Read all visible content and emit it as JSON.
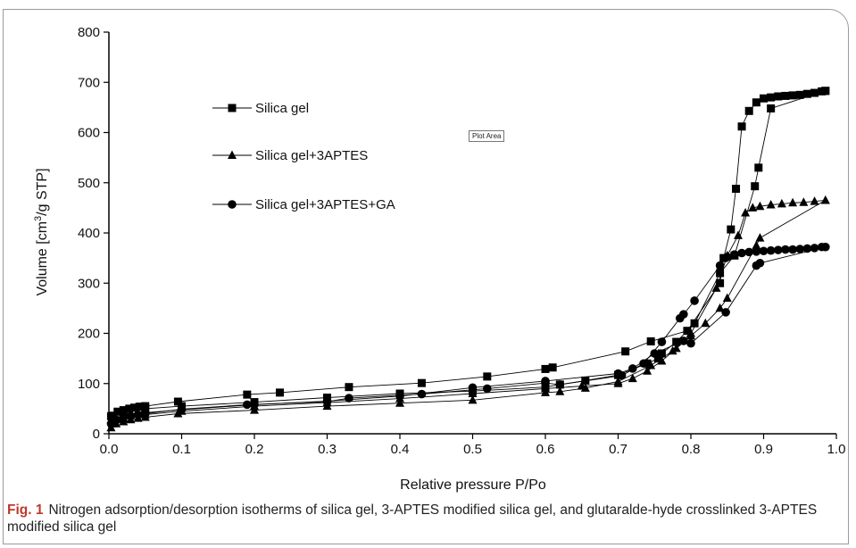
{
  "chart_data": {
    "type": "scatter",
    "xlabel": "Relative pressure P/Po",
    "ylabel_main": "Volume [cm",
    "ylabel_sup": "3",
    "ylabel_rest": "/g STP]",
    "xlim": [
      0.0,
      1.0
    ],
    "ylim": [
      0,
      800
    ],
    "xticks": [
      "0.0",
      "0.1",
      "0.2",
      "0.3",
      "0.4",
      "0.5",
      "0.6",
      "0.7",
      "0.8",
      "0.9",
      "1.0"
    ],
    "yticks": [
      "0",
      "100",
      "200",
      "300",
      "400",
      "500",
      "600",
      "700",
      "800"
    ],
    "grid": false,
    "legend_position": "top-left",
    "series": [
      {
        "name": "Silica gel",
        "marker": "square",
        "adsorption": [
          [
            0.003,
            35
          ],
          [
            0.012,
            44
          ],
          [
            0.02,
            47
          ],
          [
            0.028,
            50
          ],
          [
            0.035,
            52
          ],
          [
            0.042,
            54
          ],
          [
            0.05,
            55
          ],
          [
            0.095,
            64
          ],
          [
            0.19,
            78
          ],
          [
            0.235,
            82
          ],
          [
            0.33,
            93
          ],
          [
            0.43,
            101
          ],
          [
            0.52,
            114
          ],
          [
            0.6,
            129
          ],
          [
            0.61,
            132
          ],
          [
            0.71,
            164
          ],
          [
            0.745,
            184
          ],
          [
            0.795,
            205
          ],
          [
            0.84,
            300
          ],
          [
            0.845,
            350
          ],
          [
            0.855,
            407
          ],
          [
            0.862,
            488
          ],
          [
            0.87,
            612
          ],
          [
            0.88,
            643
          ],
          [
            0.89,
            660
          ],
          [
            0.9,
            668
          ],
          [
            0.91,
            670
          ],
          [
            0.92,
            672
          ],
          [
            0.93,
            673
          ],
          [
            0.94,
            674
          ],
          [
            0.95,
            675
          ],
          [
            0.96,
            677
          ],
          [
            0.97,
            679
          ],
          [
            0.98,
            682
          ],
          [
            0.985,
            683
          ]
        ],
        "desorption": [
          [
            0.985,
            683
          ],
          [
            0.91,
            648
          ],
          [
            0.893,
            530
          ],
          [
            0.888,
            493
          ],
          [
            0.86,
            355
          ],
          [
            0.84,
            320
          ],
          [
            0.805,
            220
          ],
          [
            0.78,
            183
          ],
          [
            0.76,
            160
          ],
          [
            0.755,
            150
          ],
          [
            0.74,
            140
          ],
          [
            0.7,
            117
          ],
          [
            0.655,
            106
          ],
          [
            0.62,
            98
          ],
          [
            0.6,
            93
          ],
          [
            0.5,
            85
          ],
          [
            0.4,
            80
          ],
          [
            0.3,
            72
          ],
          [
            0.2,
            63
          ],
          [
            0.1,
            55
          ],
          [
            0.05,
            50
          ],
          [
            0.02,
            42
          ],
          [
            0.005,
            36
          ]
        ]
      },
      {
        "name": "Silica gel+3APTES",
        "marker": "triangle",
        "adsorption": [
          [
            0.003,
            12
          ],
          [
            0.01,
            20
          ],
          [
            0.02,
            24
          ],
          [
            0.03,
            28
          ],
          [
            0.04,
            31
          ],
          [
            0.05,
            33
          ],
          [
            0.095,
            40
          ],
          [
            0.2,
            47
          ],
          [
            0.3,
            55
          ],
          [
            0.4,
            61
          ],
          [
            0.5,
            67
          ],
          [
            0.6,
            82
          ],
          [
            0.62,
            84
          ],
          [
            0.655,
            91
          ],
          [
            0.7,
            104
          ],
          [
            0.745,
            136
          ],
          [
            0.775,
            165
          ],
          [
            0.8,
            200
          ],
          [
            0.835,
            290
          ],
          [
            0.85,
            355
          ],
          [
            0.865,
            395
          ],
          [
            0.875,
            440
          ],
          [
            0.885,
            450
          ],
          [
            0.895,
            453
          ],
          [
            0.91,
            456
          ],
          [
            0.925,
            458
          ],
          [
            0.94,
            460
          ],
          [
            0.955,
            461
          ],
          [
            0.97,
            463
          ],
          [
            0.985,
            465
          ]
        ],
        "desorption": [
          [
            0.985,
            465
          ],
          [
            0.895,
            390
          ],
          [
            0.89,
            375
          ],
          [
            0.85,
            270
          ],
          [
            0.84,
            250
          ],
          [
            0.82,
            220
          ],
          [
            0.8,
            195
          ],
          [
            0.78,
            170
          ],
          [
            0.76,
            145
          ],
          [
            0.74,
            125
          ],
          [
            0.72,
            110
          ],
          [
            0.7,
            100
          ],
          [
            0.65,
            95
          ],
          [
            0.6,
            90
          ],
          [
            0.5,
            80
          ],
          [
            0.4,
            70
          ],
          [
            0.3,
            62
          ],
          [
            0.2,
            55
          ],
          [
            0.1,
            45
          ],
          [
            0.05,
            38
          ],
          [
            0.02,
            30
          ],
          [
            0.005,
            20
          ]
        ]
      },
      {
        "name": "Silica gel+3APTES+GA",
        "marker": "circle",
        "adsorption": [
          [
            0.003,
            20
          ],
          [
            0.01,
            28
          ],
          [
            0.02,
            32
          ],
          [
            0.03,
            35
          ],
          [
            0.04,
            38
          ],
          [
            0.05,
            40
          ],
          [
            0.1,
            49
          ],
          [
            0.19,
            58
          ],
          [
            0.3,
            64
          ],
          [
            0.33,
            71
          ],
          [
            0.43,
            79
          ],
          [
            0.52,
            90
          ],
          [
            0.6,
            101
          ],
          [
            0.62,
            98
          ],
          [
            0.705,
            116
          ],
          [
            0.735,
            140
          ],
          [
            0.76,
            183
          ],
          [
            0.785,
            230
          ],
          [
            0.79,
            238
          ],
          [
            0.805,
            265
          ],
          [
            0.84,
            335
          ],
          [
            0.85,
            352
          ],
          [
            0.86,
            357
          ],
          [
            0.87,
            360
          ],
          [
            0.88,
            362
          ],
          [
            0.89,
            363
          ],
          [
            0.9,
            364
          ],
          [
            0.91,
            365
          ],
          [
            0.92,
            366
          ],
          [
            0.93,
            367
          ],
          [
            0.94,
            367
          ],
          [
            0.95,
            368
          ],
          [
            0.96,
            369
          ],
          [
            0.97,
            370
          ],
          [
            0.98,
            372
          ],
          [
            0.985,
            372
          ]
        ],
        "desorption": [
          [
            0.985,
            372
          ],
          [
            0.895,
            340
          ],
          [
            0.89,
            335
          ],
          [
            0.848,
            242
          ],
          [
            0.8,
            180
          ],
          [
            0.79,
            185
          ],
          [
            0.75,
            160
          ],
          [
            0.72,
            130
          ],
          [
            0.7,
            120
          ],
          [
            0.6,
            105
          ],
          [
            0.5,
            92
          ],
          [
            0.4,
            75
          ],
          [
            0.3,
            65
          ],
          [
            0.2,
            58
          ],
          [
            0.1,
            48
          ],
          [
            0.05,
            42
          ],
          [
            0.02,
            35
          ],
          [
            0.005,
            25
          ]
        ]
      }
    ]
  },
  "plot_area_tag": "Plot Area",
  "caption": {
    "label": "Fig. 1",
    "text": "Nitrogen adsorption/desorption isotherms of silica gel, 3-APTES modified silica gel, and glutaralde-hyde crosslinked 3-APTES modified silica gel"
  }
}
